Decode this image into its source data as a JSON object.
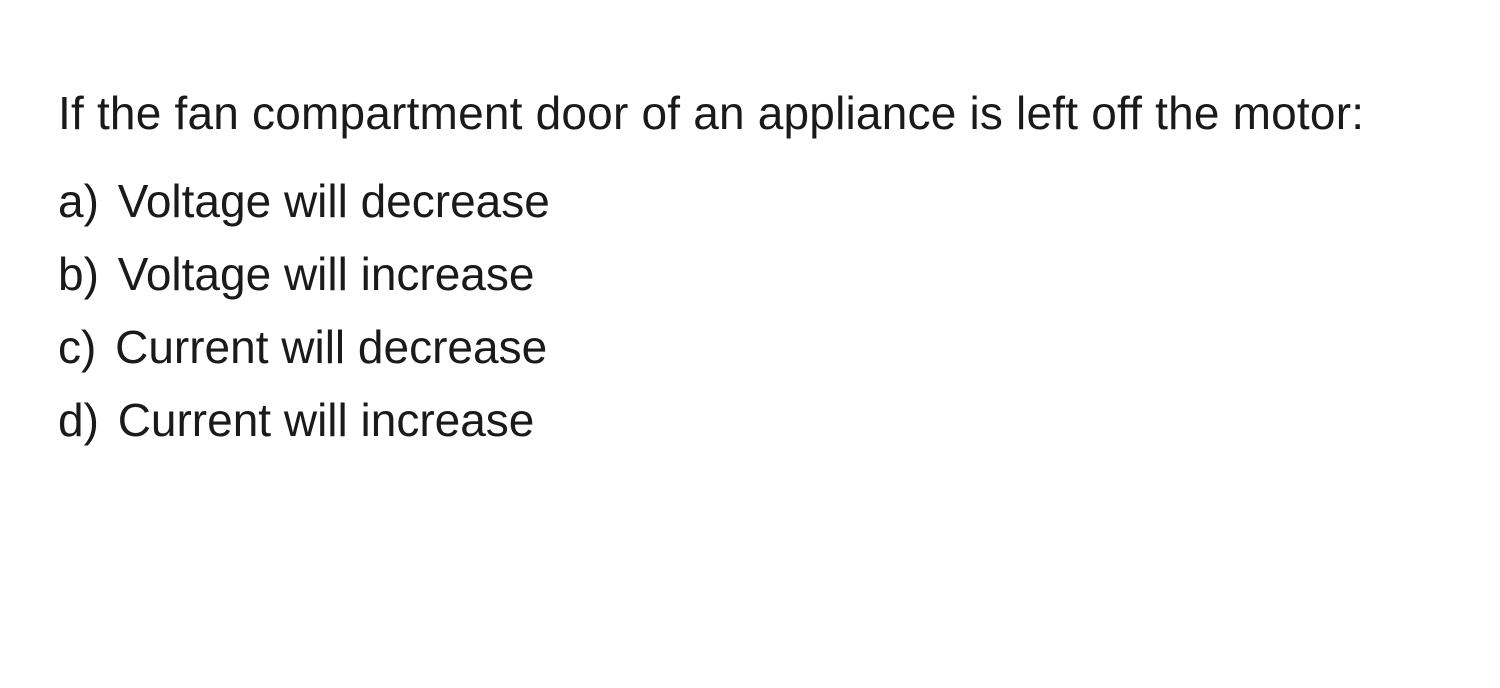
{
  "question": "If the fan compartment door of an appliance is left off the motor:",
  "options": [
    {
      "label": "a)",
      "text": "Voltage will decrease"
    },
    {
      "label": "b)",
      "text": "Voltage will increase"
    },
    {
      "label": "c)",
      "text": "Current will decrease"
    },
    {
      "label": "d)",
      "text": "Current will increase"
    }
  ],
  "style": {
    "background_color": "#ffffff",
    "text_color": "#1a1a1a",
    "font_size_pt": 34,
    "line_height": 1.55,
    "font_family": "-apple-system"
  }
}
